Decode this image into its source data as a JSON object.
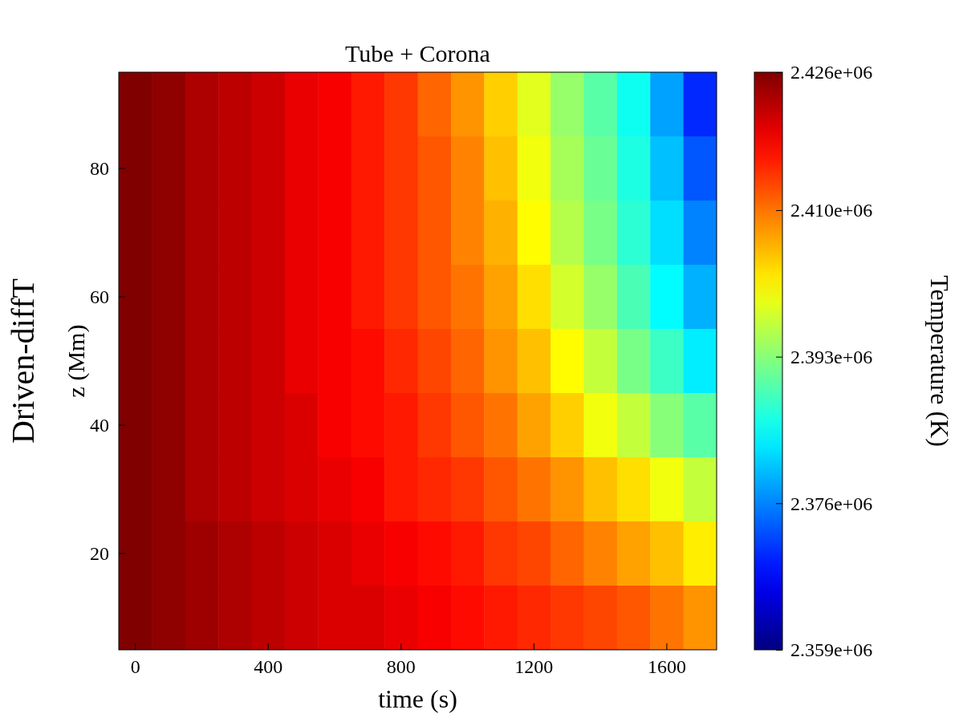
{
  "chart_data": {
    "type": "heatmap",
    "title": "Tube + Corona",
    "xlabel": "time (s)",
    "ylabel": "z (Mm)",
    "clabel": "Temperature (K)",
    "annotations": [
      "Driven-diffT"
    ],
    "categories": [
      "0",
      null,
      null,
      null,
      "400",
      null,
      null,
      null,
      "800",
      null,
      null,
      null,
      "1200",
      null,
      null,
      null,
      "1600",
      null
    ],
    "y_categories": [
      null,
      "80",
      null,
      "60",
      null,
      "40",
      null,
      "20",
      null
    ],
    "clim": [
      2359000,
      2426000
    ],
    "cticks": [
      {
        "value": 2359000,
        "label": "2.359e+06"
      },
      {
        "value": 2376000,
        "label": "2.376e+06"
      },
      {
        "value": 2393000,
        "label": "2.393e+06"
      },
      {
        "value": 2410000,
        "label": "2.410e+06"
      },
      {
        "value": 2426000,
        "label": "2.426e+06"
      }
    ],
    "cells": [
      [
        2426000,
        2425000,
        2423000,
        2422000,
        2421000,
        2419000,
        2418000,
        2416000,
        2414000,
        2411000,
        2408000,
        2404000,
        2399000,
        2394000,
        2390000,
        2385000,
        2378000,
        2370000
      ],
      [
        2426000,
        2425000,
        2423000,
        2422000,
        2421000,
        2419000,
        2418000,
        2416000,
        2414000,
        2412000,
        2409000,
        2405000,
        2400000,
        2395000,
        2391000,
        2386000,
        2380000,
        2373000
      ],
      [
        2426000,
        2425000,
        2423000,
        2422000,
        2421000,
        2419000,
        2418000,
        2416000,
        2414000,
        2412000,
        2409000,
        2406000,
        2401000,
        2396000,
        2392000,
        2387000,
        2382000,
        2376000
      ],
      [
        2426000,
        2425000,
        2423000,
        2422000,
        2421000,
        2419000,
        2418000,
        2416000,
        2414000,
        2412000,
        2410000,
        2407000,
        2403000,
        2398000,
        2394000,
        2389000,
        2384000,
        2379000
      ],
      [
        2426000,
        2425000,
        2423000,
        2422000,
        2421000,
        2419000,
        2418000,
        2417000,
        2415000,
        2413000,
        2411000,
        2408000,
        2405000,
        2401000,
        2397000,
        2392000,
        2388000,
        2383000
      ],
      [
        2426000,
        2425000,
        2423000,
        2422000,
        2421000,
        2420000,
        2418000,
        2417000,
        2416000,
        2414000,
        2412000,
        2410000,
        2407000,
        2404000,
        2400000,
        2397000,
        2393000,
        2390000
      ],
      [
        2426000,
        2425000,
        2423000,
        2422000,
        2421000,
        2420000,
        2419000,
        2418000,
        2416000,
        2415000,
        2414000,
        2412000,
        2410000,
        2408000,
        2405000,
        2403000,
        2400000,
        2397000
      ],
      [
        2426000,
        2425000,
        2424000,
        2423000,
        2422000,
        2421000,
        2420000,
        2419000,
        2418000,
        2417000,
        2416000,
        2414000,
        2413000,
        2411000,
        2409000,
        2407000,
        2405000,
        2402000
      ],
      [
        2426000,
        2425000,
        2424000,
        2423000,
        2422000,
        2421000,
        2420000,
        2420000,
        2419000,
        2418000,
        2417000,
        2416000,
        2415000,
        2414000,
        2413000,
        2412000,
        2410000,
        2408000
      ]
    ]
  }
}
